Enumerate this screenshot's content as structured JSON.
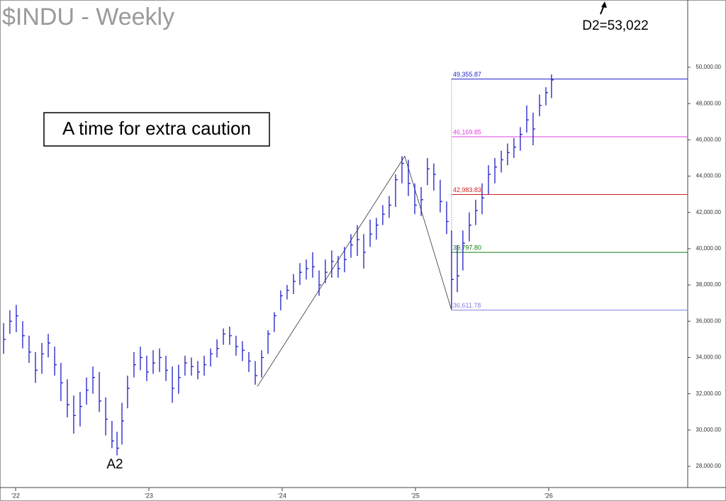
{
  "chart_data": {
    "type": "ohlc",
    "title": "$INDU - Weekly",
    "annotation_box": "A time for extra caution",
    "annotations": [
      "A2",
      "D2=53,022"
    ],
    "color": "#1c1cc8",
    "x": [
      2021.91,
      2021.957,
      2022.005,
      2022.053,
      2022.101,
      2022.149,
      2022.197,
      2022.245,
      2022.293,
      2022.34,
      2022.388,
      2022.436,
      2022.484,
      2022.532,
      2022.58,
      2022.628,
      2022.676,
      2022.723,
      2022.761,
      2022.798,
      2022.84,
      2022.888,
      2022.936,
      2022.984,
      2023.032,
      2023.08,
      2023.128,
      2023.176,
      2023.223,
      2023.271,
      2023.319,
      2023.367,
      2023.415,
      2023.463,
      2023.511,
      2023.559,
      2023.606,
      2023.654,
      2023.702,
      2023.75,
      2023.798,
      2023.846,
      2023.894,
      2023.941,
      2023.989,
      2024.037,
      2024.085,
      2024.133,
      2024.181,
      2024.229,
      2024.277,
      2024.324,
      2024.372,
      2024.42,
      2024.468,
      2024.516,
      2024.564,
      2024.612,
      2024.66,
      2024.707,
      2024.755,
      2024.803,
      2024.851,
      2024.899,
      2024.947,
      2024.995,
      2025.043,
      2025.09,
      2025.138,
      2025.186,
      2025.234,
      2025.271,
      2025.314,
      2025.356,
      2025.404,
      2025.452,
      2025.5,
      2025.548,
      2025.596,
      2025.644,
      2025.691,
      2025.739,
      2025.787,
      2025.835,
      2025.883,
      2025.931,
      2025.979,
      2026.021
    ],
    "high": [
      35900,
      36600,
      36900,
      36000,
      35200,
      34300,
      34800,
      35300,
      34600,
      33700,
      32800,
      31900,
      32100,
      32900,
      33500,
      33200,
      31800,
      30500,
      29900,
      31500,
      33000,
      34300,
      34600,
      34100,
      34400,
      34500,
      34100,
      33500,
      33600,
      34100,
      34000,
      33800,
      34100,
      34500,
      35000,
      35600,
      35700,
      35200,
      34900,
      34300,
      33800,
      34400,
      35500,
      36500,
      37700,
      38000,
      38600,
      39200,
      39400,
      39800,
      38800,
      39400,
      39900,
      39600,
      40100,
      40800,
      41300,
      40800,
      41600,
      41700,
      42400,
      42900,
      44100,
      45100,
      44900,
      43600,
      43400,
      45000,
      44700,
      43800,
      42600,
      41000,
      40200,
      41000,
      42000,
      42700,
      43600,
      44600,
      45000,
      45400,
      45800,
      46100,
      46700,
      47900,
      47500,
      48500,
      48900,
      49600
    ],
    "low": [
      34200,
      35300,
      35400,
      34500,
      33700,
      32600,
      33100,
      34000,
      33000,
      31600,
      30700,
      29800,
      30200,
      31400,
      32000,
      31000,
      29700,
      29000,
      28600,
      29200,
      31200,
      32900,
      33300,
      32700,
      33100,
      33200,
      32700,
      31500,
      32000,
      33000,
      33000,
      32800,
      33000,
      33500,
      34000,
      34700,
      34700,
      34100,
      33800,
      33200,
      32500,
      32900,
      34200,
      35400,
      36600,
      37200,
      37500,
      38000,
      38300,
      38400,
      37400,
      38100,
      38400,
      38400,
      38700,
      39500,
      39600,
      38900,
      40100,
      40500,
      41300,
      41700,
      42300,
      43600,
      42900,
      41900,
      41800,
      43500,
      43200,
      42000,
      40800,
      36700,
      37600,
      38800,
      40400,
      41300,
      41900,
      43000,
      43600,
      44200,
      44600,
      45000,
      45400,
      46400,
      45700,
      47300,
      47900,
      48300
    ],
    "close": [
      35000,
      36000,
      36300,
      35200,
      34300,
      33300,
      34200,
      34800,
      33600,
      32600,
      31400,
      30800,
      31300,
      32200,
      32900,
      31600,
      30600,
      29400,
      29000,
      30500,
      32300,
      33600,
      34000,
      33200,
      33700,
      34000,
      33300,
      32300,
      32900,
      33700,
      33500,
      33200,
      33600,
      34200,
      34500,
      35300,
      35200,
      34600,
      34400,
      33800,
      33000,
      34000,
      35300,
      36300,
      37400,
      37700,
      38200,
      38700,
      38900,
      39000,
      38000,
      38700,
      39300,
      38900,
      39400,
      40200,
      40500,
      39800,
      40800,
      41300,
      41900,
      42400,
      43800,
      44700,
      43600,
      42400,
      42700,
      44400,
      44100,
      42600,
      41500,
      38300,
      38500,
      40300,
      41300,
      42100,
      42800,
      44100,
      44500,
      44900,
      45300,
      45600,
      46300,
      47100,
      46600,
      47900,
      48600,
      49300
    ],
    "swing": {
      "x": [
        2023.814,
        2024.92,
        2025.271
      ],
      "y": [
        32400,
        45100,
        36611.78
      ],
      "color": "#333333"
    },
    "levels": [
      {
        "value": 49355.87,
        "label": "49,355.87",
        "color": "#2020d0"
      },
      {
        "value": 46169.85,
        "label": "46,169.85",
        "color": "#e040e0"
      },
      {
        "value": 42983.83,
        "label": "42,983.83",
        "color": "#d02020"
      },
      {
        "value": 39797.8,
        "label": "39,797.80",
        "color": "#108010"
      },
      {
        "value": 36611.78,
        "label": "36,611.78",
        "color": "#8080e0"
      }
    ],
    "xlim": [
      2021.883,
      2027.043
    ],
    "ylim": [
      26830,
      53710
    ],
    "xticks": [
      {
        "value": 2022,
        "label": "'22"
      },
      {
        "value": 2023,
        "label": "'23"
      },
      {
        "value": 2024,
        "label": "'24"
      },
      {
        "value": 2025,
        "label": "'25"
      },
      {
        "value": 2026,
        "label": "'26"
      }
    ],
    "yticks": [
      {
        "value": 28000,
        "label": "28,000.00"
      },
      {
        "value": 30000,
        "label": "30,000.00"
      },
      {
        "value": 32000,
        "label": "32,000.00"
      },
      {
        "value": 34000,
        "label": "34,000.00"
      },
      {
        "value": 36000,
        "label": "36,000.00"
      },
      {
        "value": 38000,
        "label": "38,000.00"
      },
      {
        "value": 40000,
        "label": "40,000.00"
      },
      {
        "value": 42000,
        "label": "42,000.00"
      },
      {
        "value": 44000,
        "label": "44,000.00"
      },
      {
        "value": 46000,
        "label": "46,000.00"
      },
      {
        "value": 48000,
        "label": "48,000.00"
      },
      {
        "value": 50000,
        "label": "50,000.00"
      }
    ]
  }
}
